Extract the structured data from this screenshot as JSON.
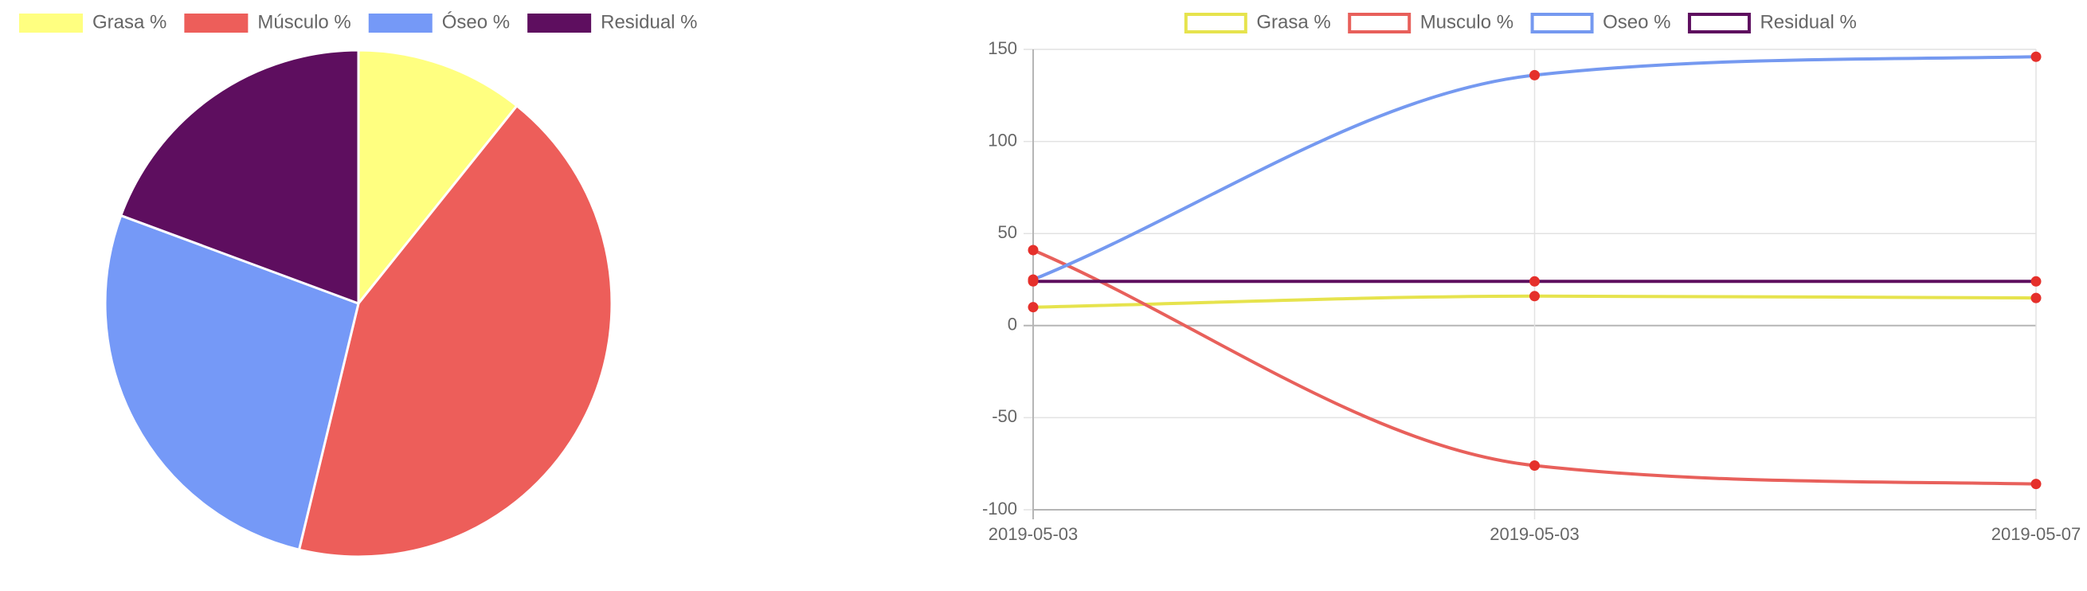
{
  "chart_data": [
    {
      "type": "pie",
      "title": "",
      "legend": {
        "position": "top"
      },
      "series": [
        {
          "name": "Grasa %",
          "value": 10,
          "color": "#FFFF80"
        },
        {
          "name": "Músculo %",
          "value": 40,
          "color": "#ED5E5A"
        },
        {
          "name": "Óseo %",
          "value": 25,
          "color": "#7599F7"
        },
        {
          "name": "Residual %",
          "value": 18,
          "color": "#5E0E5F"
        }
      ]
    },
    {
      "type": "line",
      "title": "",
      "xlabel": "",
      "ylabel": "",
      "legend": {
        "position": "top"
      },
      "grid": true,
      "categories": [
        "2019-05-03",
        "2019-05-03",
        "2019-05-07"
      ],
      "ylim": [
        -100,
        150
      ],
      "yticks": [
        "150",
        "100",
        "50",
        "0",
        "-50",
        "-100"
      ],
      "point_color": "#E5302B",
      "series": [
        {
          "name": "Grasa %",
          "color": "#E6E34D",
          "values": [
            10,
            16,
            15
          ]
        },
        {
          "name": "Musculo %",
          "color": "#E8605B",
          "values": [
            41,
            -76,
            -86
          ]
        },
        {
          "name": "Oseo %",
          "color": "#7599F0",
          "values": [
            25,
            136,
            146
          ]
        },
        {
          "name": "Residual %",
          "color": "#5E0E5F",
          "values": [
            24,
            24,
            24
          ]
        }
      ]
    }
  ]
}
